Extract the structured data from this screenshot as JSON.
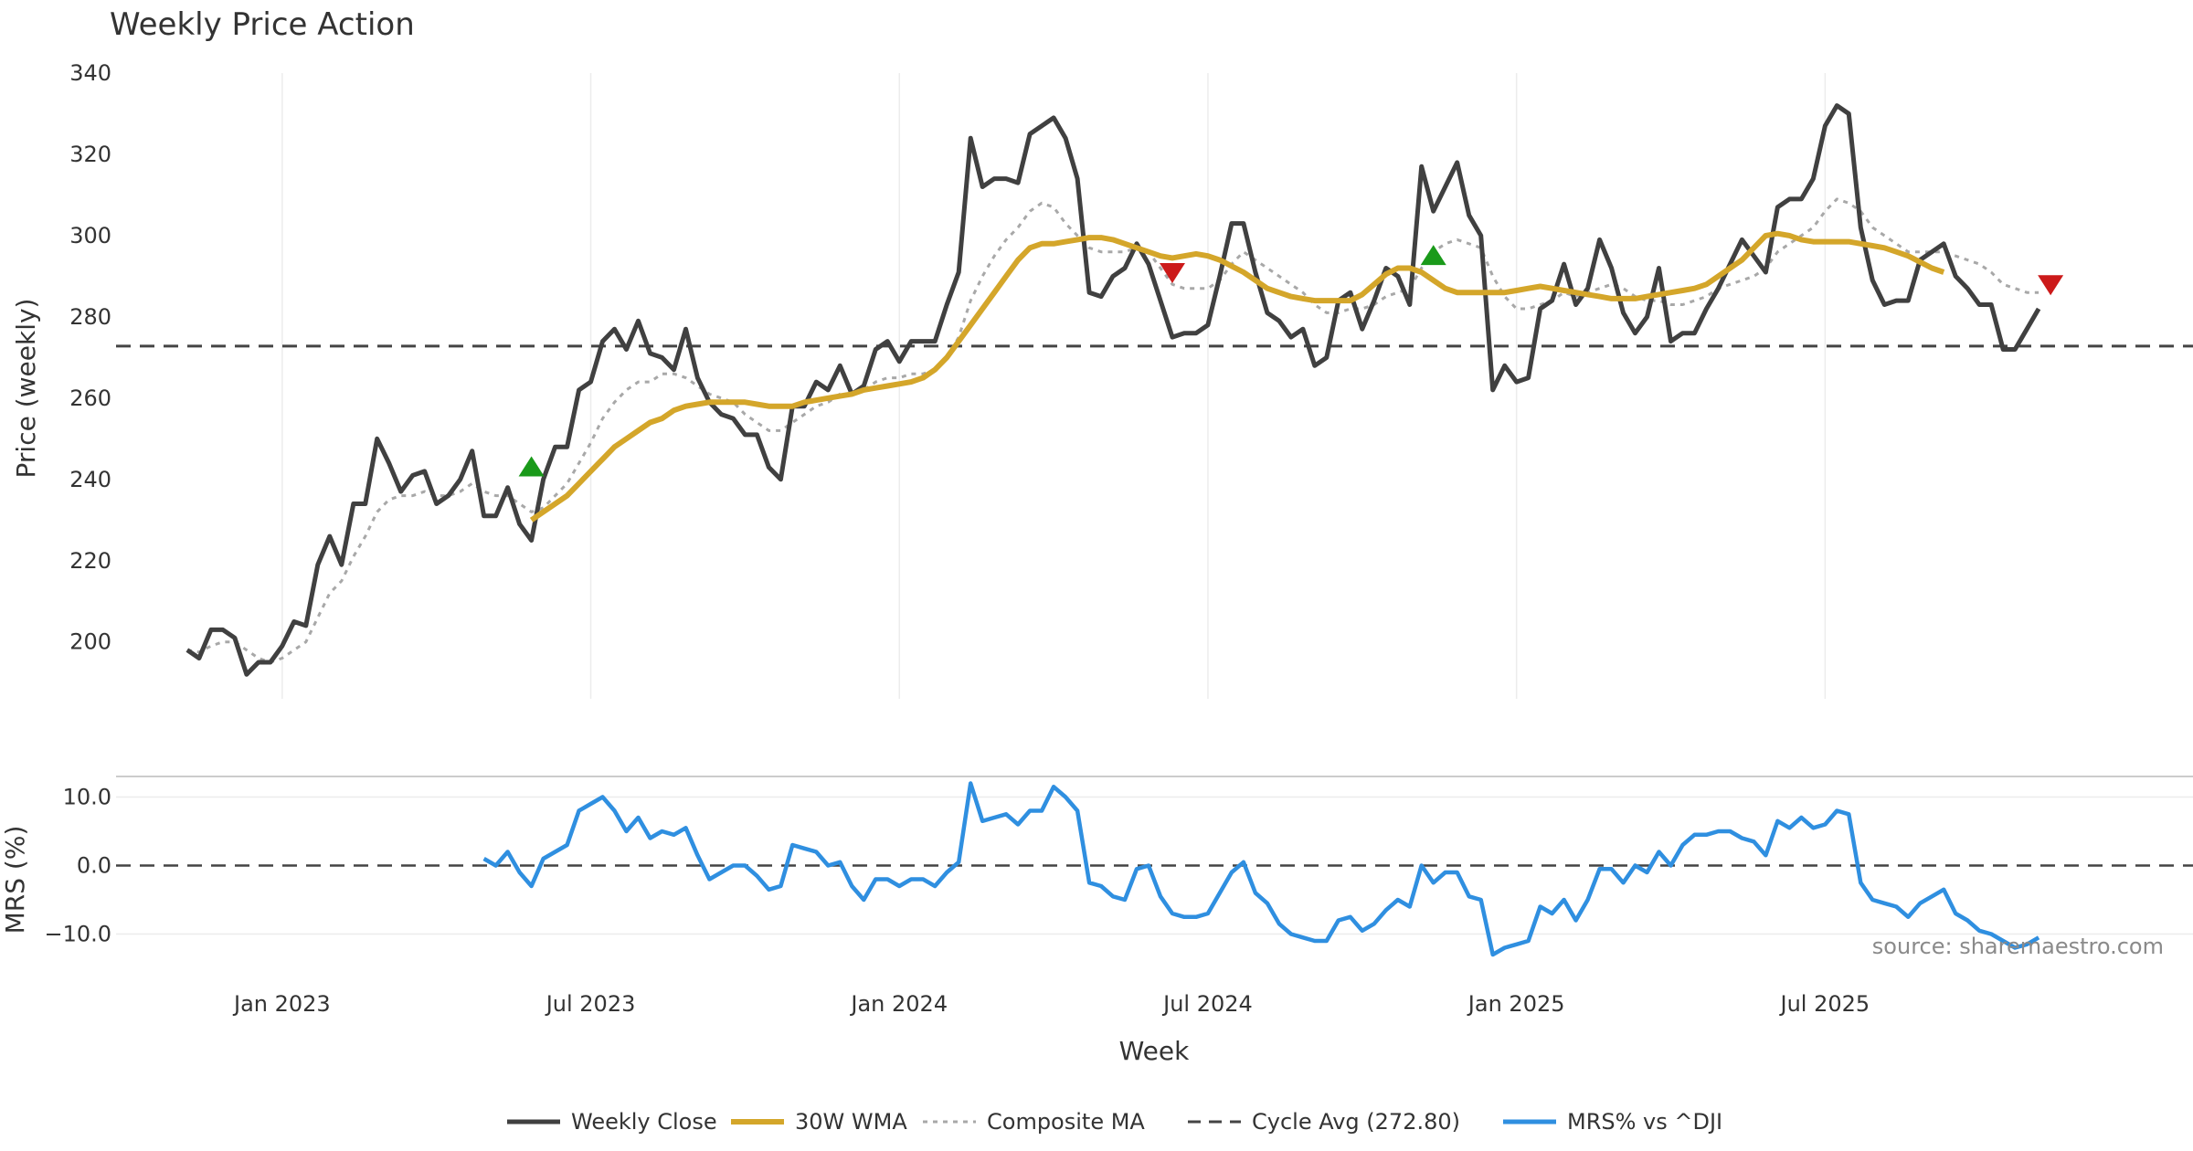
{
  "chart_data": {
    "type": "line",
    "title": "Weekly Price Action",
    "xlabel": "Week",
    "price_panel": {
      "ylabel": "Price (weekly)",
      "ylim": [
        186,
        340
      ],
      "yticks": [
        "200",
        "220",
        "240",
        "260",
        "280",
        "300",
        "320",
        "340"
      ],
      "ytick_values": [
        200,
        220,
        240,
        260,
        280,
        300,
        320,
        340
      ]
    },
    "mrs_panel": {
      "ylabel": "MRS (%)",
      "ylim": [
        -15,
        13
      ],
      "yticks": [
        "10.0",
        "0.0",
        "−10.0"
      ],
      "ytick_values": [
        10,
        0,
        -10
      ],
      "zero_line": 0
    },
    "x_range_weeks": [
      -14,
      161
    ],
    "x_ticks": [
      {
        "label": "Jan 2023",
        "week": 0
      },
      {
        "label": "Jul 2023",
        "week": 26
      },
      {
        "label": "Jan 2024",
        "week": 52
      },
      {
        "label": "Jul 2024",
        "week": 78
      },
      {
        "label": "Jan 2025",
        "week": 104
      },
      {
        "label": "Jul 2025",
        "week": 130
      }
    ],
    "start_week": -8,
    "series": [
      {
        "name": "Weekly Close",
        "color": "#404040",
        "values": [
          198,
          196,
          203,
          203,
          201,
          192,
          195,
          195,
          199,
          205,
          204,
          219,
          226,
          219,
          234,
          234,
          250,
          244,
          237,
          241,
          242,
          234,
          236,
          240,
          247,
          231,
          231,
          238,
          229,
          225,
          240,
          248,
          248,
          262,
          264,
          274,
          277,
          272,
          279,
          271,
          270,
          267,
          277,
          265,
          259,
          256,
          255,
          251,
          251,
          243,
          240,
          258,
          258,
          264,
          262,
          268,
          261,
          263,
          272,
          274,
          269,
          274,
          274,
          274,
          283,
          291,
          324,
          312,
          314,
          314,
          313,
          325,
          327,
          329,
          324,
          314,
          286,
          285,
          290,
          292,
          298,
          293,
          284,
          275,
          276,
          276,
          278,
          290,
          303,
          303,
          291,
          281,
          279,
          275,
          277,
          268,
          270,
          284,
          286,
          277,
          284,
          292,
          290,
          283,
          317,
          306,
          312,
          318,
          305,
          300,
          262,
          268,
          264,
          265,
          282,
          284,
          293,
          283,
          287,
          299,
          292,
          281,
          276,
          280,
          292,
          274,
          276,
          276,
          282,
          287,
          293,
          299,
          295,
          291,
          307,
          309,
          309,
          314,
          327,
          332,
          330,
          302,
          289,
          283,
          284,
          284,
          294,
          296,
          298,
          290,
          287,
          283,
          283,
          272,
          272,
          277,
          282
        ]
      },
      {
        "name": "30W WMA",
        "color": "#d4a62a",
        "start_index": 29,
        "values": [
          230,
          232,
          234,
          236,
          239,
          242,
          245,
          248,
          250,
          252,
          254,
          255,
          257,
          258,
          258.5,
          259,
          259,
          259,
          259,
          258.5,
          258,
          258,
          258,
          259,
          259.5,
          260,
          260.5,
          261,
          262,
          262.5,
          263,
          263.5,
          264,
          265,
          267,
          270,
          274,
          278,
          282,
          286,
          290,
          294,
          297,
          298,
          298,
          298.5,
          299,
          299.5,
          299.5,
          299,
          298,
          297,
          296,
          295,
          294.5,
          295,
          295.5,
          295,
          294,
          292.5,
          291,
          289,
          287,
          286,
          285,
          284.5,
          284,
          284,
          284,
          284,
          285.5,
          288,
          290.5,
          292,
          292,
          291,
          289,
          287,
          286,
          286,
          286,
          286,
          286,
          286.5,
          287,
          287.5,
          287,
          286.5,
          286,
          285.5,
          285,
          284.5,
          284.5,
          284.5,
          285,
          285.5,
          286,
          286.5,
          287,
          288,
          290,
          292,
          294,
          297,
          300,
          300.5,
          300,
          299,
          298.5,
          298.5,
          298.5,
          298.5,
          298,
          297.5,
          297,
          296,
          295,
          293.5,
          292,
          291
        ]
      },
      {
        "name": "Composite MA",
        "color": "#a8a8a8",
        "values": [
          198,
          197.5,
          199,
          200,
          200,
          198,
          196,
          195,
          196,
          198,
          200,
          206,
          212,
          215,
          221,
          226,
          232,
          235,
          236,
          236,
          237,
          236,
          236,
          237,
          239,
          237,
          236,
          236,
          234,
          232,
          233,
          236,
          239,
          244,
          249,
          255,
          259,
          262,
          264,
          264,
          266,
          266,
          265,
          263,
          261,
          260,
          259,
          256,
          254,
          252,
          252,
          254,
          256,
          258,
          259,
          261,
          261,
          262,
          264,
          265,
          265,
          266,
          266,
          267,
          270,
          275,
          284,
          290,
          295,
          299,
          302,
          306,
          308,
          307,
          303,
          300,
          297,
          296,
          296,
          296,
          297,
          296,
          292,
          288,
          287,
          287,
          287,
          289,
          293,
          296,
          294,
          292,
          290,
          288,
          286,
          283,
          281,
          281,
          282,
          282,
          283,
          285,
          286,
          287,
          292,
          296,
          298,
          299,
          298,
          297,
          290,
          285,
          282,
          282,
          283,
          284,
          286,
          285,
          286,
          287,
          288,
          287,
          285,
          284,
          284,
          283,
          283,
          284,
          285,
          287,
          288,
          289,
          290,
          292,
          296,
          298,
          300,
          302,
          306,
          309,
          308,
          306,
          302,
          300,
          298,
          296,
          296,
          296,
          296,
          295,
          294,
          293,
          291,
          288,
          287,
          286,
          286
        ]
      },
      {
        "name": "Cycle Avg (272.80)",
        "color": "#444444",
        "constant": 272.8
      },
      {
        "name": "MRS% vs ^DJI",
        "color": "#2f8fe0",
        "start_index": 25,
        "values": [
          1,
          0,
          2,
          -1,
          -3,
          1,
          2,
          3,
          8,
          9,
          10,
          8,
          5,
          7,
          4,
          5,
          4.5,
          5.5,
          1.5,
          -2,
          -1,
          0,
          0,
          -1.5,
          -3.5,
          -3,
          3,
          2.5,
          2,
          0,
          0.5,
          -3,
          -5,
          -2,
          -2,
          -3,
          -2,
          -2,
          -3,
          -1,
          0.5,
          12,
          6.5,
          7,
          7.5,
          6,
          8,
          8,
          11.5,
          10,
          8,
          -2.5,
          -3,
          -4.5,
          -5,
          -0.5,
          0,
          -4.5,
          -7,
          -7.5,
          -7.5,
          -7,
          -4,
          -1,
          0.5,
          -4,
          -5.5,
          -8.5,
          -10,
          -10.5,
          -11,
          -11,
          -8,
          -7.5,
          -9.5,
          -8.5,
          -6.5,
          -5,
          -6,
          0,
          -2.5,
          -1,
          -1,
          -4.5,
          -5,
          -13,
          -12,
          -11.5,
          -11,
          -6,
          -7,
          -5,
          -8,
          -5,
          -0.5,
          -0.5,
          -2.5,
          0,
          -1,
          2,
          0,
          3,
          4.5,
          4.5,
          5,
          5,
          4,
          3.5,
          1.5,
          6.5,
          5.5,
          7,
          5.5,
          6,
          8,
          7.5,
          -2.5,
          -5,
          -5.5,
          -6,
          -7.5,
          -5.5,
          -4.5,
          -3.5,
          -7,
          -8,
          -9.5,
          -10,
          -11,
          -12,
          -11.5,
          -10.5
        ]
      }
    ],
    "buy_signals": [
      {
        "week": 21,
        "value": 243
      },
      {
        "week": 97,
        "value": 295
      }
    ],
    "sell_signals": [
      {
        "week": 75,
        "value": 291
      },
      {
        "week": 149,
        "value": 288
      }
    ],
    "legend": [
      "Weekly Close",
      "30W WMA",
      "Composite MA",
      "Cycle Avg (272.80)",
      "MRS% vs ^DJI"
    ],
    "annotation": "source: sharemaestro.com"
  }
}
